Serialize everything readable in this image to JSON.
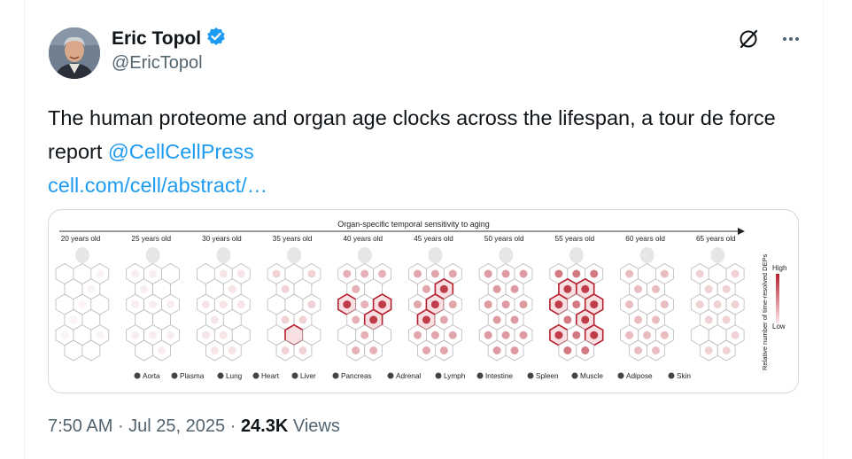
{
  "author": {
    "name": "Eric Topol",
    "handle": "@EricTopol",
    "verified": true
  },
  "tweet": {
    "text": "The human proteome and organ age clocks across the lifespan, a tour de force report ",
    "mention": "@CellCellPress",
    "link": "cell.com/cell/abstract/…"
  },
  "figure": {
    "title": "Organ-specific temporal sensitivity to aging",
    "ages": [
      "20 years old",
      "25 years old",
      "30 years old",
      "35 years old",
      "40 years old",
      "45 years old",
      "50 years old",
      "55 years old",
      "60 years old",
      "65 years old"
    ],
    "legend_scale_title": "Relative number of time-resolved DEPs",
    "legend_high": "High",
    "legend_low": "Low",
    "organs": [
      "Aorta",
      "Plasma",
      "Lung",
      "Heart",
      "Liver",
      "Pancreas",
      "Adrenal",
      "Lymph",
      "Intestine",
      "Spleen",
      "Muscle",
      "Adipose",
      "Skin"
    ]
  },
  "meta": {
    "time": "7:50 AM",
    "date": "Jul 25, 2025",
    "views_count": "24.3K",
    "views_label": "Views"
  },
  "icons": {
    "verified": "verified-badge-icon",
    "grok": "grok-icon",
    "more": "more-options-icon"
  },
  "colors": {
    "link": "#1d9bf0",
    "verified": "#1d9bf0",
    "highlight": "#b5202e"
  }
}
